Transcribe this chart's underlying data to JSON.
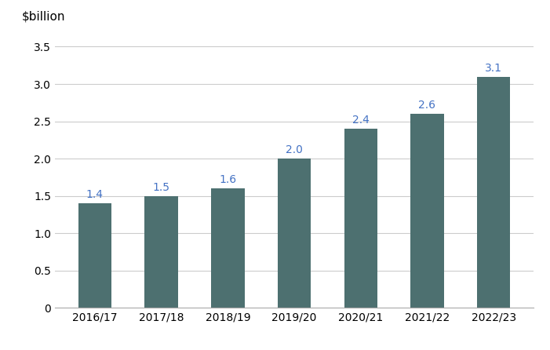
{
  "categories": [
    "2016/17",
    "2017/18",
    "2018/19",
    "2019/20",
    "2020/21",
    "2021/22",
    "2022/23"
  ],
  "values": [
    1.4,
    1.5,
    1.6,
    2.0,
    2.4,
    2.6,
    3.1
  ],
  "bar_color": "#4d7070",
  "ylabel_text": "$billion",
  "ylim": [
    0,
    3.75
  ],
  "yticks": [
    0,
    0.5,
    1.0,
    1.5,
    2.0,
    2.5,
    3.0,
    3.5
  ],
  "label_color": "#4472c4",
  "background_color": "#ffffff",
  "grid_color": "#cccccc",
  "label_fontsize": 10,
  "ylabel_fontsize": 11,
  "tick_fontsize": 10,
  "bar_width": 0.5
}
